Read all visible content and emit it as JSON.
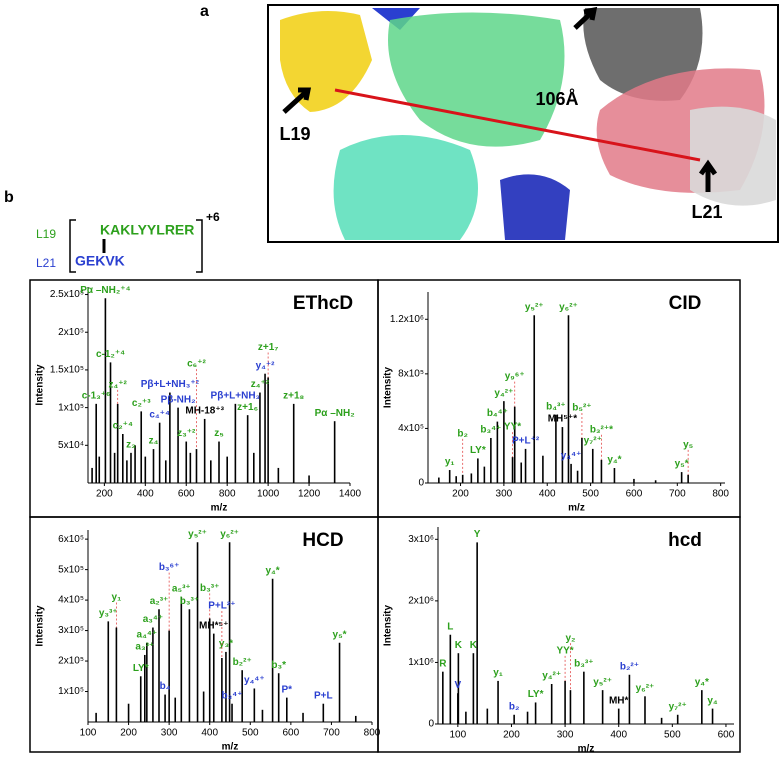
{
  "panel_a": {
    "letter": "a",
    "left_site": "L19",
    "distance": "106Å",
    "right_site": "L21"
  },
  "panel_b": {
    "letter": "b",
    "peptide_1_site": "L19",
    "peptide_1": "KAKLYYLRER",
    "charge": "+6",
    "peptide_2_site": "L21",
    "peptide_2": "GEKVK"
  },
  "chart_data": [
    {
      "type": "stem",
      "title": "EThcD",
      "xlabel": "m/z",
      "ylabel": "Intensity",
      "color": "#000000",
      "xlim": [
        120,
        1400
      ],
      "ylim": [
        0,
        260000
      ],
      "xticks": [
        200,
        400,
        600,
        800,
        1000,
        1200,
        1400
      ],
      "yticks": [
        {
          "value": 50000,
          "label": "5x10⁴"
        },
        {
          "value": 100000,
          "label": "1x10⁵"
        },
        {
          "value": 150000,
          "label": "1.5x10⁵"
        },
        {
          "value": 200000,
          "label": "2x10⁵"
        },
        {
          "value": 250000,
          "label": "2.5x10⁵"
        }
      ],
      "x": [
        140,
        160,
        175,
        205,
        230,
        250,
        265,
        290,
        310,
        330,
        350,
        380,
        400,
        440,
        470,
        500,
        520,
        560,
        600,
        620,
        650,
        690,
        720,
        760,
        800,
        840,
        900,
        930,
        960,
        985,
        1000,
        1050,
        1125,
        1200,
        1325
      ],
      "values": [
        20000,
        105000,
        35000,
        245000,
        160000,
        40000,
        105000,
        65000,
        30000,
        40000,
        50000,
        95000,
        35000,
        45000,
        80000,
        30000,
        120000,
        100000,
        55000,
        40000,
        45000,
        85000,
        30000,
        55000,
        35000,
        105000,
        90000,
        40000,
        120000,
        145000,
        140000,
        20000,
        105000,
        10000,
        82000
      ],
      "peak_labels": [
        null,
        "c-1₃⁺⁶",
        null,
        "Pα –NH₂⁺⁴",
        "c-1₂⁺⁴",
        null,
        "z₄⁺²",
        "c₂⁺⁴",
        null,
        "z₃",
        null,
        "c₂⁺³",
        null,
        "z₄",
        "c₄⁺⁴",
        null,
        "Pβ+L+NH₃⁺²",
        "Pβ-NH₂",
        "z₃⁺²",
        null,
        "c₆⁺²",
        "MH-18⁺³",
        null,
        "z₅",
        null,
        "Pβ+L+NH₃",
        "z+1₆",
        null,
        "z₄⁺²",
        "y₄⁺²",
        "z+1₇",
        null,
        "z+1₈",
        null,
        "Pα –NH₂"
      ],
      "label_colors": [
        null,
        "#2ca01c",
        null,
        "#2ca01c",
        "#2ca01c",
        null,
        "#2ca01c",
        "#2ca01c",
        null,
        "#2ca01c",
        null,
        "#2ca01c",
        null,
        "#2ca01c",
        "#2a3fd0",
        null,
        "#2a3fd0",
        "#2a3fd0",
        "#2ca01c",
        null,
        "#2ca01c",
        "#000000",
        null,
        "#2ca01c",
        null,
        "#2a3fd0",
        "#2ca01c",
        null,
        "#2ca01c",
        "#2a3fd0",
        "#2ca01c",
        null,
        "#2ca01c",
        null,
        "#2ca01c"
      ]
    },
    {
      "type": "stem",
      "title": "CID",
      "xlabel": "m/z",
      "ylabel": "Intensity",
      "color": "#000000",
      "xlim": [
        125,
        810
      ],
      "ylim": [
        0,
        1400000
      ],
      "xticks": [
        200,
        300,
        400,
        500,
        600,
        700,
        800
      ],
      "yticks": [
        0,
        {
          "value": 400000,
          "label": "4x10⁵"
        },
        {
          "value": 800000,
          "label": "8x10⁵"
        },
        {
          "value": 1200000,
          "label": "1.2x10⁶"
        }
      ],
      "x": [
        150,
        175,
        190,
        205,
        225,
        240,
        255,
        270,
        285,
        300,
        320,
        325,
        340,
        350,
        370,
        390,
        420,
        435,
        449,
        455,
        470,
        480,
        505,
        525,
        555,
        600,
        650,
        710,
        725
      ],
      "values": [
        40000,
        95000,
        50000,
        60000,
        70000,
        180000,
        120000,
        330000,
        450000,
        600000,
        190000,
        560000,
        150000,
        250000,
        1230000,
        200000,
        500000,
        410000,
        1230000,
        140000,
        90000,
        330000,
        250000,
        170000,
        110000,
        30000,
        20000,
        80000,
        60000
      ],
      "peak_labels": [
        null,
        "y₁",
        null,
        "b₂",
        null,
        "LY*",
        null,
        "b₃⁴⁺",
        "b₄⁴⁺",
        "y₄²⁺",
        "YY*",
        "y₉⁶⁺",
        null,
        "P+L⁺²",
        "y₅²⁺",
        null,
        "b₄³⁺",
        "MH⁵⁺*",
        "y₆²⁺",
        "y₄⁴⁺",
        null,
        "b₅²⁺",
        "y₇²⁺",
        "b₃²⁺*",
        "y₄*",
        null,
        null,
        "y₅*",
        "y₅"
      ],
      "label_colors": [
        null,
        "#2ca01c",
        null,
        "#2ca01c",
        null,
        "#2ca01c",
        null,
        "#2ca01c",
        "#2ca01c",
        "#2ca01c",
        "#2ca01c",
        "#2ca01c",
        null,
        "#2a3fd0",
        "#2ca01c",
        null,
        "#2ca01c",
        "#000000",
        "#2ca01c",
        "#2a3fd0",
        null,
        "#2ca01c",
        "#2ca01c",
        "#2ca01c",
        "#2ca01c",
        null,
        null,
        "#2ca01c",
        "#2ca01c"
      ]
    },
    {
      "type": "stem",
      "title": "HCD",
      "xlabel": "m/z",
      "ylabel": "Intensity",
      "color": "#000000",
      "xlim": [
        100,
        800
      ],
      "ylim": [
        0,
        630000
      ],
      "xticks": [
        100,
        200,
        300,
        400,
        500,
        600,
        700,
        800
      ],
      "yticks": [
        {
          "value": 100000,
          "label": "1x10⁵"
        },
        {
          "value": 200000,
          "label": "2x10⁵"
        },
        {
          "value": 300000,
          "label": "3x10⁵"
        },
        {
          "value": 400000,
          "label": "4x10⁵"
        },
        {
          "value": 500000,
          "label": "5x10⁵"
        },
        {
          "value": 600000,
          "label": "6x10⁵"
        }
      ],
      "x": [
        120,
        150,
        170,
        200,
        230,
        240,
        245,
        260,
        275,
        290,
        300,
        315,
        330,
        350,
        370,
        385,
        400,
        410,
        430,
        440,
        449,
        455,
        480,
        510,
        530,
        555,
        570,
        590,
        630,
        680,
        720,
        760
      ],
      "values": [
        30000,
        330000,
        310000,
        60000,
        150000,
        220000,
        260000,
        310000,
        370000,
        90000,
        300000,
        80000,
        410000,
        370000,
        590000,
        100000,
        340000,
        290000,
        210000,
        230000,
        590000,
        60000,
        170000,
        110000,
        40000,
        470000,
        160000,
        80000,
        30000,
        60000,
        260000,
        20000
      ],
      "peak_labels": [
        null,
        "y₃³⁺",
        "y₁",
        null,
        "LY*",
        "a₃³⁺",
        "a₄⁴⁺",
        "a₃⁴⁺",
        "a₂³⁺",
        "b₄",
        "b₃⁶⁺",
        null,
        "a₅³⁺",
        "b₃³⁺",
        "y₅²⁺",
        null,
        "b₃³⁺",
        "MH*⁵⁺",
        "P+L²⁺",
        "y₃*",
        "y₆²⁺",
        "b₃⁴⁺",
        "b₂²⁺",
        "y₄⁴⁺",
        null,
        "y₄*",
        "b₃*",
        "P*",
        null,
        "P+L",
        "y₅*",
        null
      ],
      "label_colors": [
        null,
        "#2ca01c",
        "#2ca01c",
        null,
        "#2ca01c",
        "#2ca01c",
        "#2ca01c",
        "#2ca01c",
        "#2ca01c",
        "#2a3fd0",
        "#2a3fd0",
        null,
        "#2ca01c",
        "#2ca01c",
        "#2ca01c",
        null,
        "#2ca01c",
        "#000000",
        "#2a3fd0",
        "#2ca01c",
        "#2ca01c",
        "#2a3fd0",
        "#2ca01c",
        "#2a3fd0",
        null,
        "#2ca01c",
        "#2ca01c",
        "#2a3fd0",
        null,
        "#2a3fd0",
        "#2ca01c",
        null
      ]
    },
    {
      "type": "stem",
      "title": "hcd",
      "xlabel": "m/z",
      "ylabel": "Intensity",
      "color": "#000000",
      "xlim": [
        63,
        615
      ],
      "ylim": [
        0,
        3200000
      ],
      "xticks": [
        100,
        200,
        300,
        400,
        500,
        600
      ],
      "yticks": [
        0,
        {
          "value": 1000000,
          "label": "1x10⁶"
        },
        {
          "value": 2000000,
          "label": "2x10⁶"
        },
        {
          "value": 3000000,
          "label": "3x10⁶"
        }
      ],
      "x": [
        72,
        86,
        100,
        101,
        115,
        129,
        136,
        155,
        175,
        205,
        230,
        245,
        275,
        300,
        310,
        335,
        370,
        400,
        420,
        449,
        480,
        510,
        555,
        575
      ],
      "values": [
        850000,
        1450000,
        500000,
        1150000,
        200000,
        1150000,
        2950000,
        250000,
        700000,
        150000,
        200000,
        350000,
        650000,
        700000,
        550000,
        850000,
        550000,
        250000,
        800000,
        450000,
        100000,
        150000,
        550000,
        250000
      ],
      "peak_labels": [
        "R",
        "L",
        "V",
        "K",
        null,
        "K",
        "Y",
        null,
        "y₁",
        "b₂",
        null,
        "LY*",
        "y₄²⁺",
        "YY*",
        "y₂",
        "b₃³⁺",
        "y₅²⁺",
        "MH*",
        "b₂²⁺",
        "y₆²⁺",
        null,
        "y₇²⁺",
        "y₄*",
        "y₄"
      ],
      "label_colors": [
        "#2ca01c",
        "#2ca01c",
        "#2a3fd0",
        "#2ca01c",
        null,
        "#2ca01c",
        "#2ca01c",
        null,
        "#2ca01c",
        "#2a3fd0",
        null,
        "#2ca01c",
        "#2ca01c",
        "#2ca01c",
        "#2ca01c",
        "#2ca01c",
        "#2ca01c",
        "#000000",
        "#2a3fd0",
        "#2ca01c",
        null,
        "#2ca01c",
        "#2ca01c",
        "#2ca01c"
      ]
    }
  ]
}
